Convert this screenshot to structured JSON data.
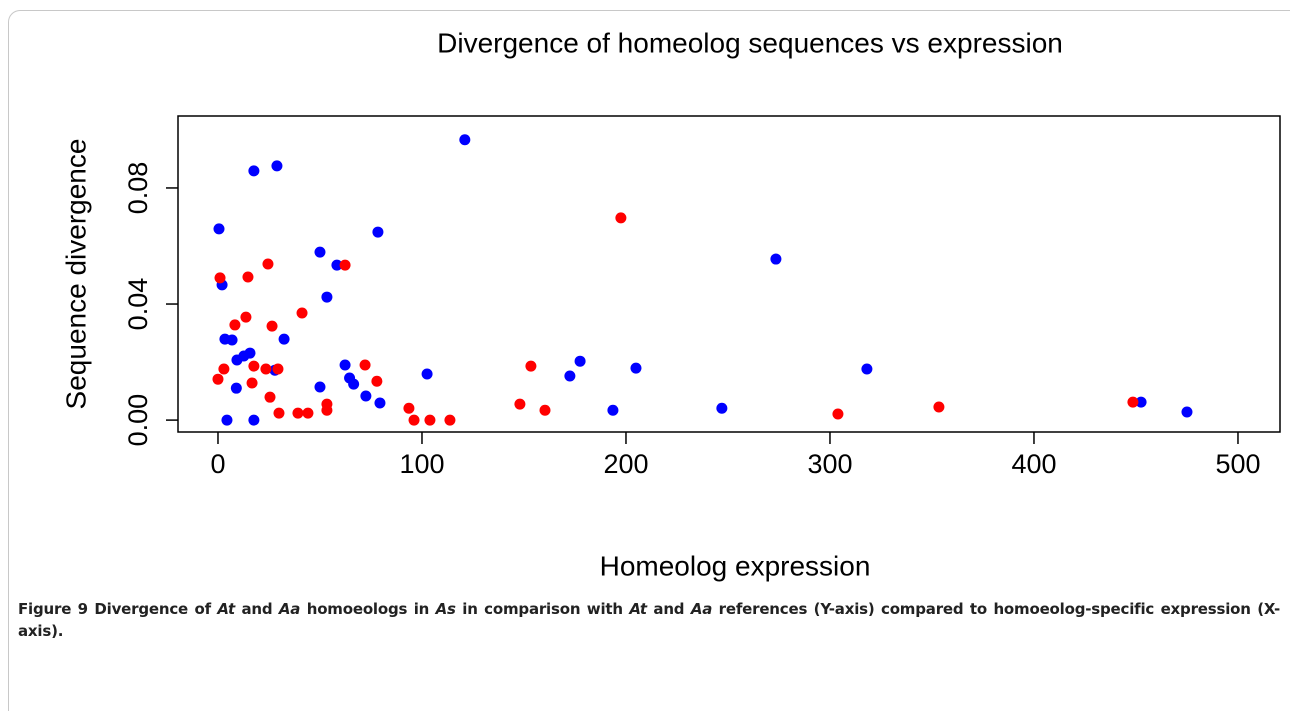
{
  "chart_data": {
    "type": "scatter",
    "title": "Divergence of homeolog sequences vs expression",
    "x_label": "Homeolog expression",
    "y_label": "Sequence divergence",
    "xlim": [
      -19.6,
      520.6
    ],
    "ylim": [
      -0.0041,
      0.1048
    ],
    "xticks": [
      0,
      100,
      200,
      300,
      400,
      500
    ],
    "yticks": [
      {
        "value": 0,
        "label": "0.00"
      },
      {
        "value": 0.04,
        "label": "0.04"
      },
      {
        "value": 0.08,
        "label": "0.08"
      }
    ],
    "series": [
      {
        "color": "#0000ff",
        "x": [
          0.5,
          2.0,
          3.4,
          4.4,
          6.9,
          9.3,
          12.7,
          15.7,
          17.6,
          17.6,
          28.9,
          27.9,
          32.4,
          50,
          53.4,
          58.3,
          62.3,
          64.5,
          66.5,
          72.5,
          50,
          78.4,
          79.4,
          102.5,
          121,
          172.5,
          177.5,
          193.6,
          204.9,
          247,
          273.5,
          318.1,
          452.5,
          475,
          9
        ],
        "y": [
          0.0659,
          0.0466,
          0.0279,
          0,
          0.0276,
          0.0207,
          0.0221,
          0.0231,
          0,
          0.0859,
          0.0876,
          0.0172,
          0.0279,
          0.0579,
          0.0424,
          0.0534,
          0.019,
          0.0145,
          0.0124,
          0.0083,
          0.0114,
          0.0648,
          0.0059,
          0.0159,
          0.0966,
          0.0152,
          0.0203,
          0.0034,
          0.0179,
          0.0041,
          0.0555,
          0.0176,
          0.0062,
          0.0028,
          0.011
        ]
      },
      {
        "color": "#ff0000",
        "x": [
          1,
          0,
          2.9,
          8.3,
          13.7,
          14.7,
          16.7,
          17.6,
          23.5,
          24.5,
          25.5,
          26.5,
          29.4,
          29.9,
          39.2,
          41.2,
          44.1,
          53.4,
          53.4,
          62.3,
          72.1,
          77.9,
          93.6,
          96.1,
          103.9,
          113.7,
          148,
          153.4,
          160.3,
          197.5,
          303.9,
          353.4,
          448.5
        ],
        "y": [
          0.049,
          0.0141,
          0.0176,
          0.0328,
          0.0355,
          0.0493,
          0.0128,
          0.0186,
          0.0176,
          0.0538,
          0.0079,
          0.0324,
          0.0176,
          0.0024,
          0.0024,
          0.0369,
          0.0024,
          0.0055,
          0.0034,
          0.0534,
          0.019,
          0.0134,
          0.0041,
          0,
          0,
          0,
          0.0055,
          0.0186,
          0.0034,
          0.0697,
          0.0021,
          0.0045,
          0.0062
        ]
      }
    ]
  },
  "caption": {
    "label": "Figure 9",
    "parts": [
      {
        "text": " Divergence of "
      },
      {
        "text": "At",
        "italic": true
      },
      {
        "text": " and "
      },
      {
        "text": "Aa",
        "italic": true
      },
      {
        "text": " homoeologs in "
      },
      {
        "text": "As",
        "italic": true
      },
      {
        "text": " in comparison with "
      },
      {
        "text": "At",
        "italic": true
      },
      {
        "text": " and "
      },
      {
        "text": "Aa",
        "italic": true
      },
      {
        "text": " references (Y-axis) compared to homoeolog-specific expression (X-axis)."
      }
    ]
  }
}
